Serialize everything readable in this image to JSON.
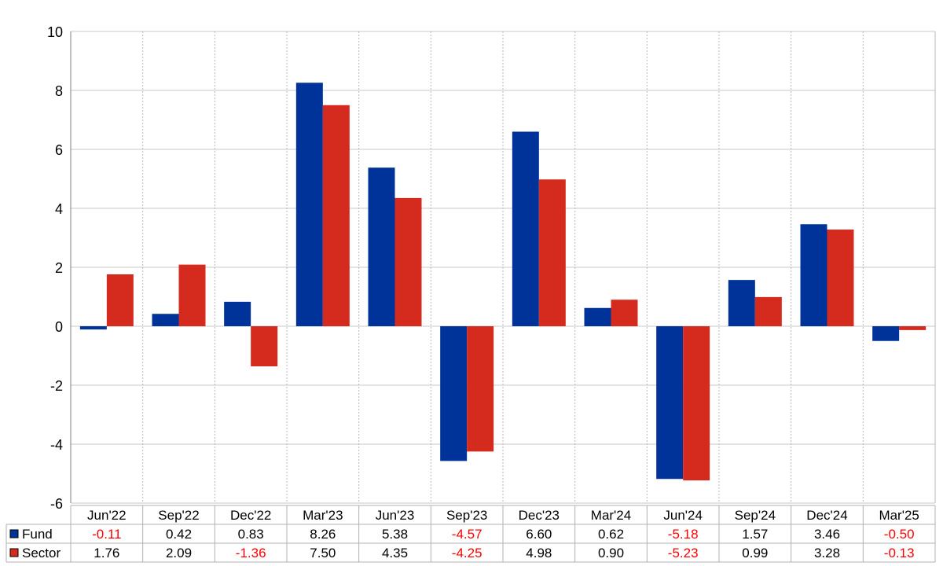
{
  "chart_data": {
    "type": "bar",
    "categories": [
      "Jun'22",
      "Sep'22",
      "Dec'22",
      "Mar'23",
      "Jun'23",
      "Sep'23",
      "Dec'23",
      "Mar'24",
      "Jun'24",
      "Sep'24",
      "Dec'24",
      "Mar'25"
    ],
    "series": [
      {
        "name": "Fund",
        "color": "#003399",
        "values": [
          -0.11,
          0.42,
          0.83,
          8.26,
          5.38,
          -4.57,
          6.6,
          0.62,
          -5.18,
          1.57,
          3.46,
          -0.5
        ],
        "labels": [
          "-0.11",
          "0.42",
          "0.83",
          "8.26",
          "5.38",
          "-4.57",
          "6.60",
          "0.62",
          "-5.18",
          "1.57",
          "3.46",
          "-0.50"
        ]
      },
      {
        "name": "Sector",
        "color": "#d52b1e",
        "values": [
          1.76,
          2.09,
          -1.36,
          7.5,
          4.35,
          -4.25,
          4.98,
          0.9,
          -5.23,
          0.99,
          3.28,
          -0.13
        ],
        "labels": [
          "1.76",
          "2.09",
          "-1.36",
          "7.50",
          "4.35",
          "-4.25",
          "4.98",
          "0.90",
          "-5.23",
          "0.99",
          "3.28",
          "-0.13"
        ]
      }
    ],
    "title": "",
    "xlabel": "",
    "ylabel": "",
    "ylim": [
      -6,
      10
    ],
    "yticks": [
      "10",
      "8",
      "6",
      "4",
      "2",
      "0",
      "-2",
      "-4",
      "-6"
    ],
    "ytick_values": [
      10,
      8,
      6,
      4,
      2,
      0,
      -2,
      -4,
      -6
    ],
    "grid": true,
    "negative_label_color": "#ff0000",
    "table_below": true
  }
}
